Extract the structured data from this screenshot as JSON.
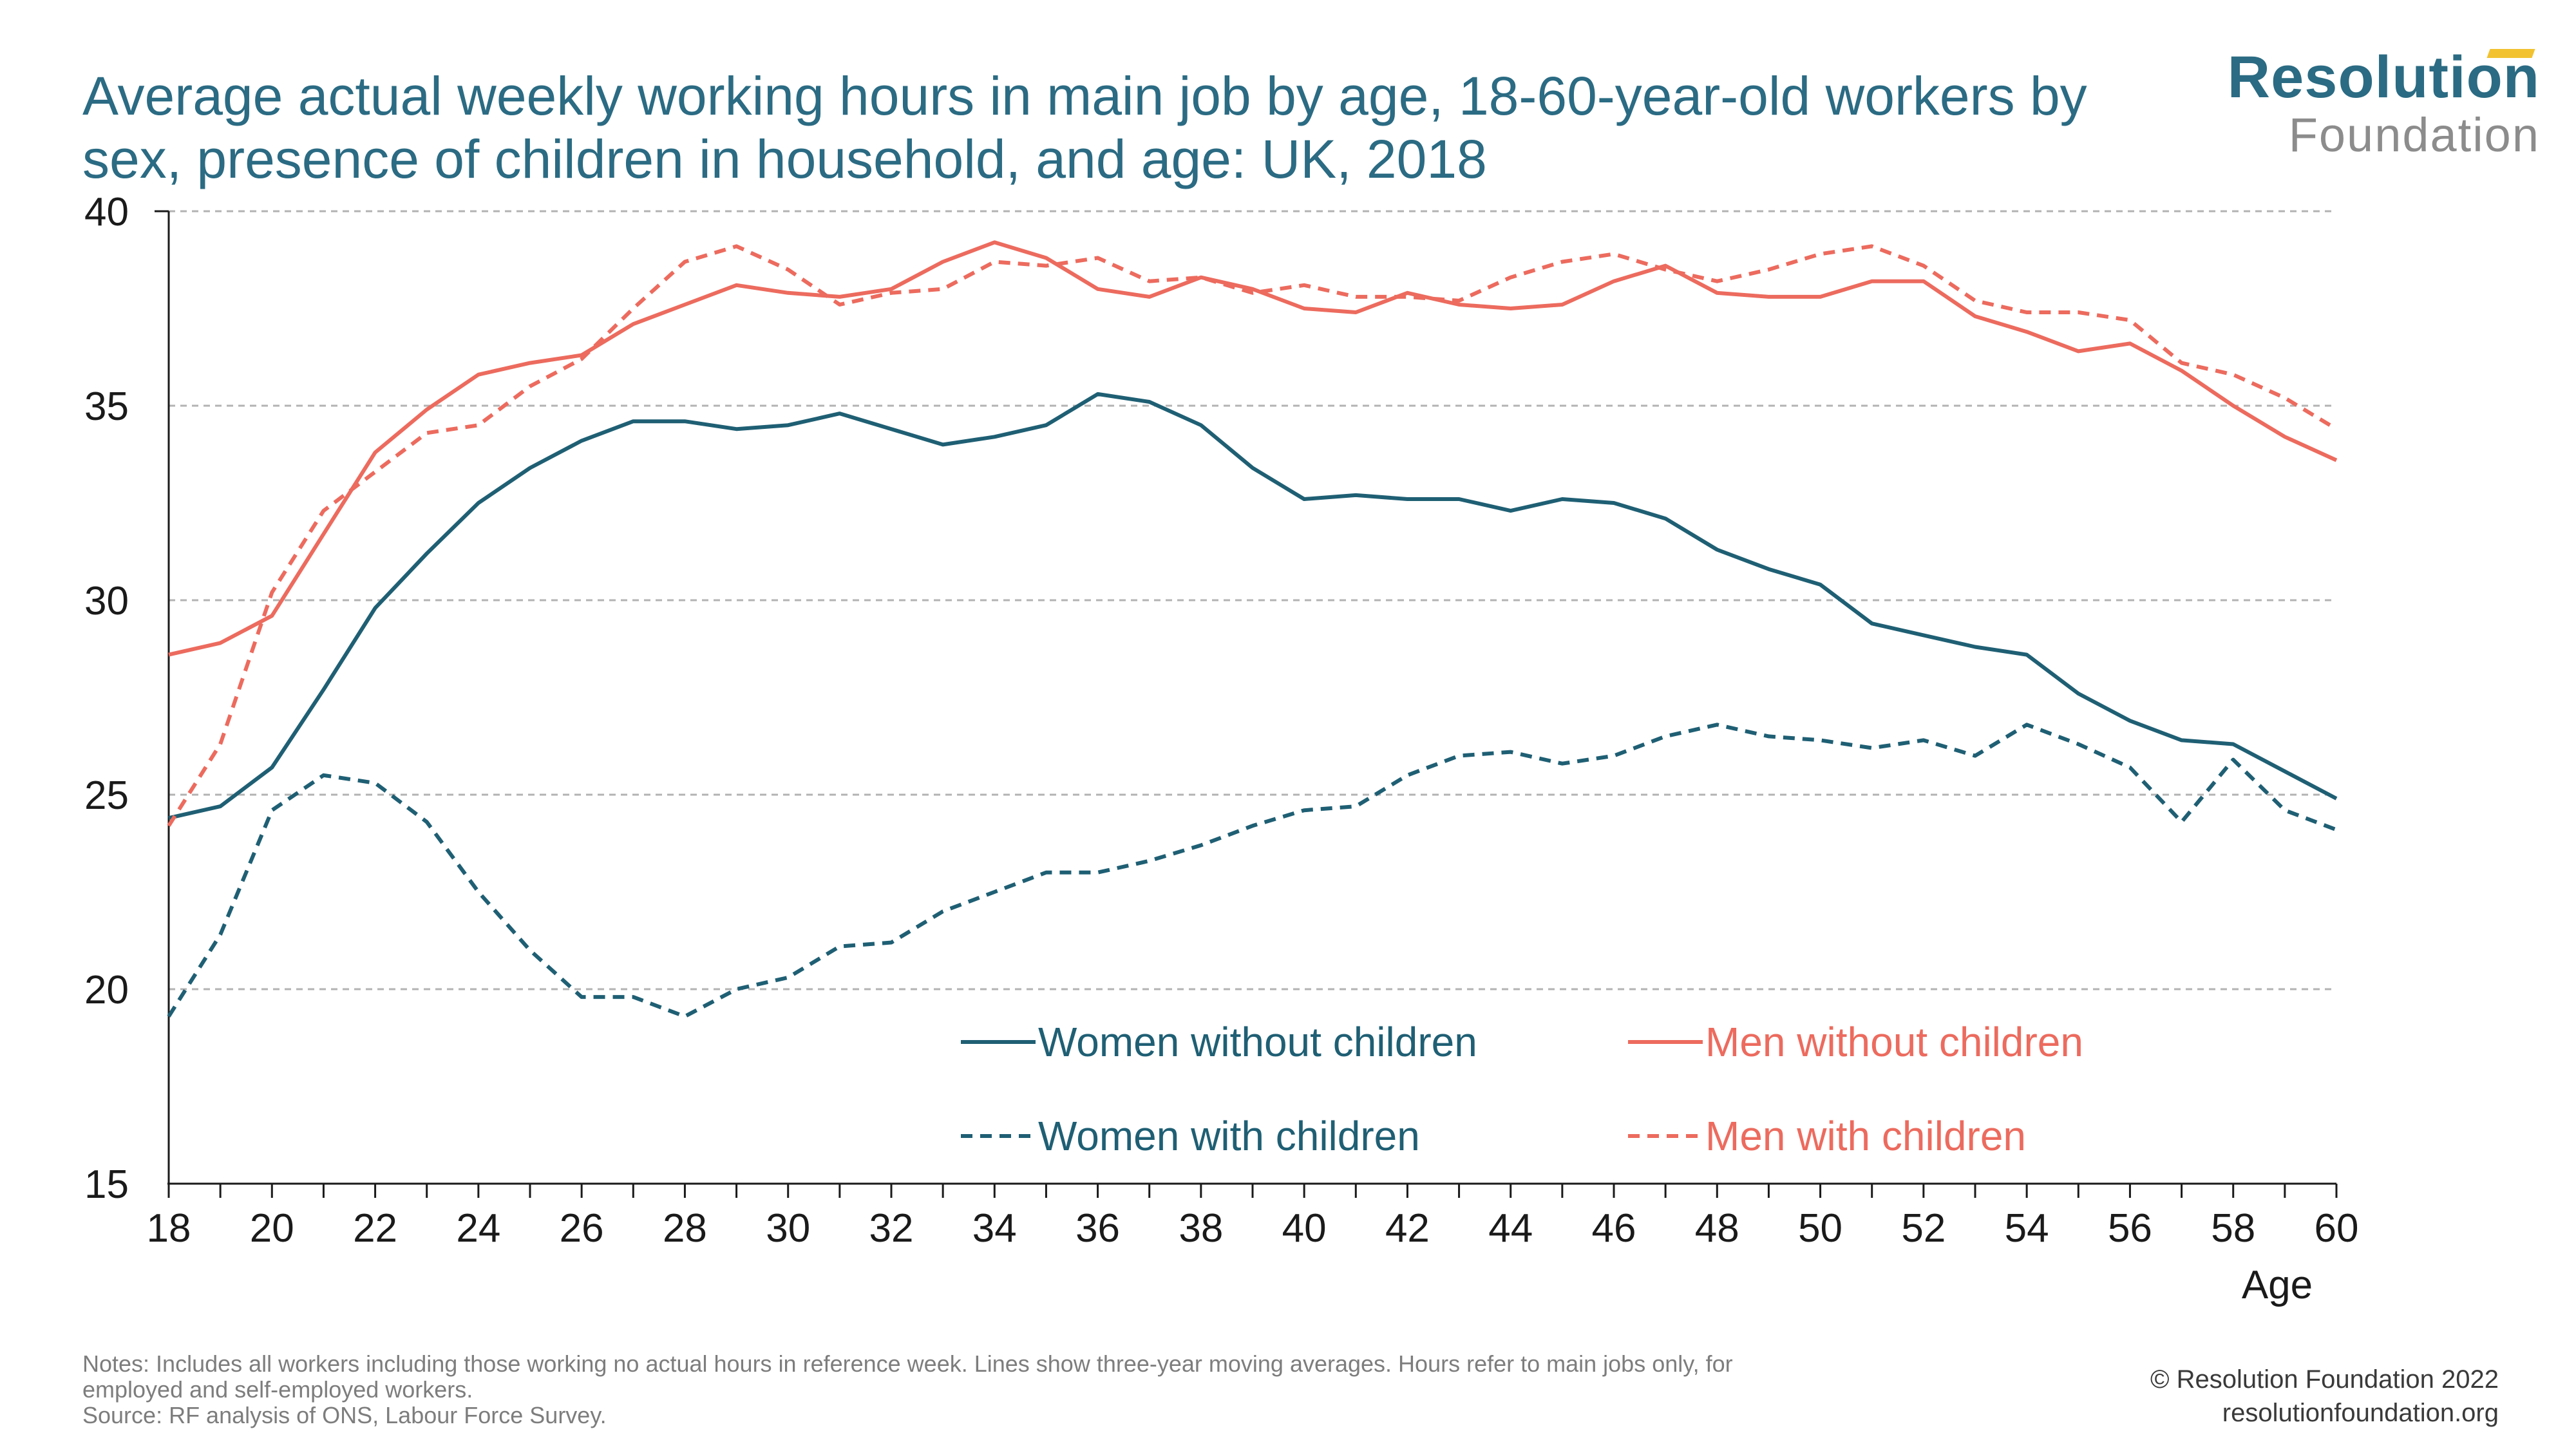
{
  "header": {
    "title": "Average actual weekly working hours in main job by age, 18-60-year-old workers by sex, presence of children in household, and age: UK, 2018"
  },
  "logo": {
    "line1": "Resolution",
    "line2": "Foundation"
  },
  "colors": {
    "teal": "#1f5f74",
    "coral": "#ec6b5e",
    "title": "#2b6b83",
    "grid": "#b3b3b3"
  },
  "chart_data": {
    "type": "line",
    "x": [
      18,
      19,
      20,
      21,
      22,
      23,
      24,
      25,
      26,
      27,
      28,
      29,
      30,
      31,
      32,
      33,
      34,
      35,
      36,
      37,
      38,
      39,
      40,
      41,
      42,
      43,
      44,
      45,
      46,
      47,
      48,
      49,
      50,
      51,
      52,
      53,
      54,
      55,
      56,
      57,
      58,
      59,
      60
    ],
    "xlabel": "Age",
    "xticks": [
      18,
      20,
      22,
      24,
      26,
      28,
      30,
      32,
      34,
      36,
      38,
      40,
      42,
      44,
      46,
      48,
      50,
      52,
      54,
      56,
      58,
      60
    ],
    "xlim": [
      18,
      60
    ],
    "ylabel": "",
    "ylim": [
      15,
      40
    ],
    "yticks": [
      15,
      20,
      25,
      30,
      35,
      40
    ],
    "grid": true,
    "legend_position": "bottom-right",
    "series": [
      {
        "name": "Women without children",
        "color": "#1f5f74",
        "dashed": false,
        "values": [
          24.4,
          24.7,
          25.7,
          27.7,
          29.8,
          31.2,
          32.5,
          33.4,
          34.1,
          34.6,
          34.6,
          34.4,
          34.5,
          34.8,
          34.4,
          34.0,
          34.2,
          34.5,
          35.3,
          35.1,
          34.5,
          33.4,
          32.6,
          32.7,
          32.6,
          32.6,
          32.3,
          32.6,
          32.5,
          32.1,
          31.3,
          30.8,
          30.4,
          29.4,
          29.1,
          28.8,
          28.6,
          27.6,
          26.9,
          26.4,
          26.3,
          25.6,
          24.9
        ]
      },
      {
        "name": "Women with children",
        "color": "#1f5f74",
        "dashed": true,
        "values": [
          19.3,
          21.4,
          24.6,
          25.5,
          25.3,
          24.3,
          22.5,
          21.0,
          19.8,
          19.8,
          19.3,
          20.0,
          20.3,
          21.1,
          21.2,
          22.0,
          22.5,
          23.0,
          23.0,
          23.3,
          23.7,
          24.2,
          24.6,
          24.7,
          25.5,
          26.0,
          26.1,
          25.8,
          26.0,
          26.5,
          26.8,
          26.5,
          26.4,
          26.2,
          26.4,
          26.0,
          26.8,
          26.3,
          25.7,
          24.3,
          25.9,
          24.6,
          24.1
        ]
      },
      {
        "name": "Men without children",
        "color": "#ec6b5e",
        "dashed": false,
        "values": [
          28.6,
          28.9,
          29.6,
          31.7,
          33.8,
          34.9,
          35.8,
          36.1,
          36.3,
          37.1,
          37.6,
          38.1,
          37.9,
          37.8,
          38.0,
          38.7,
          39.2,
          38.8,
          38.0,
          37.8,
          38.3,
          38.0,
          37.5,
          37.4,
          37.9,
          37.6,
          37.5,
          37.6,
          38.2,
          38.6,
          37.9,
          37.8,
          37.8,
          38.2,
          38.2,
          37.3,
          36.9,
          36.4,
          36.6,
          35.9,
          35.0,
          34.2,
          33.6
        ]
      },
      {
        "name": "Men with children",
        "color": "#ec6b5e",
        "dashed": true,
        "values": [
          24.2,
          26.3,
          30.2,
          32.3,
          33.3,
          34.3,
          34.5,
          35.5,
          36.2,
          37.5,
          38.7,
          39.1,
          38.5,
          37.6,
          37.9,
          38.0,
          38.7,
          38.6,
          38.8,
          38.2,
          38.3,
          37.9,
          38.1,
          37.8,
          37.8,
          37.7,
          38.3,
          38.7,
          38.9,
          38.5,
          38.2,
          38.5,
          38.9,
          39.1,
          38.6,
          37.7,
          37.4,
          37.4,
          37.2,
          36.1,
          35.8,
          35.2,
          34.4
        ]
      }
    ]
  },
  "footer": {
    "notes_line1": "Notes: Includes all workers including those working no actual hours in reference week. Lines show three-year moving averages. Hours refer to main jobs only, for",
    "notes_line2": "employed and self-employed workers.",
    "source": "Source: RF analysis of ONS, Labour Force Survey.",
    "copyright": "© Resolution Foundation 2022",
    "url": "resolutionfoundation.org"
  }
}
